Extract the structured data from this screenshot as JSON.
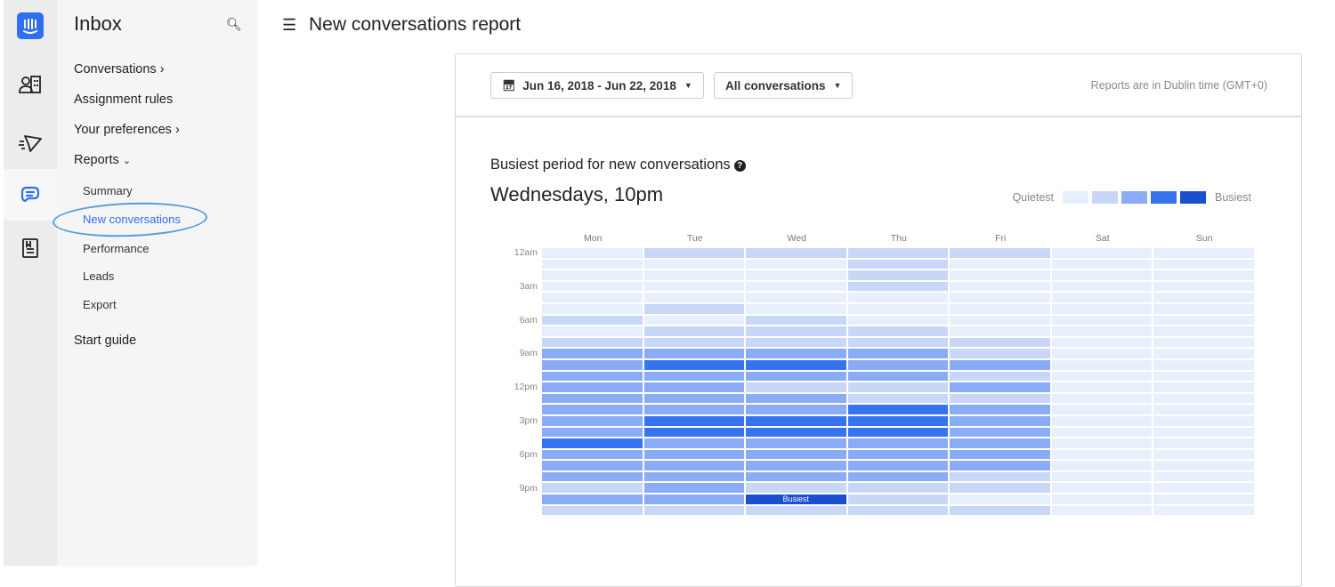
{
  "rail": {
    "icons": [
      "intercom-logo",
      "contacts-icon",
      "outbound-icon",
      "inbox-chat-icon",
      "articles-icon"
    ]
  },
  "sidebar": {
    "title": "Inbox",
    "items": [
      {
        "label": "Conversations",
        "chevron": "›"
      },
      {
        "label": "Assignment rules"
      },
      {
        "label": "Your preferences",
        "chevron": "›"
      },
      {
        "label": "Reports",
        "chevron": "⌄"
      }
    ],
    "sub_items": [
      "Summary",
      "New conversations",
      "Performance",
      "Leads",
      "Export"
    ],
    "selected": "New conversations",
    "start_guide": "Start guide"
  },
  "header": {
    "title": "New conversations report"
  },
  "filters": {
    "date_range": "Jun 16, 2018 - Jun 22, 2018",
    "conversation_filter": "All conversations",
    "timezone_note": "Reports are in Dublin time (GMT+0)"
  },
  "report": {
    "section_title": "Busiest period for new conversations",
    "busiest_period": "Wednesdays, 10pm",
    "legend_low": "Quietest",
    "legend_high": "Busiest"
  },
  "colors": {
    "accent": "#2f6ff0",
    "levels": [
      "#e8effc",
      "#c8d6f7",
      "#8aabf5",
      "#3673ef",
      "#1a4fcf"
    ]
  },
  "chart_data": {
    "type": "heatmap",
    "x_categories": [
      "Mon",
      "Tue",
      "Wed",
      "Thu",
      "Fri",
      "Sat",
      "Sun"
    ],
    "y_tick_labels": [
      "12am",
      "3am",
      "6am",
      "9am",
      "12pm",
      "3pm",
      "6pm",
      "9pm"
    ],
    "hours": [
      "12am",
      "1am",
      "2am",
      "3am",
      "4am",
      "5am",
      "6am",
      "7am",
      "8am",
      "9am",
      "10am",
      "11am",
      "12pm",
      "1pm",
      "2pm",
      "3pm",
      "4pm",
      "5pm",
      "6pm",
      "7pm",
      "8pm",
      "9pm",
      "10pm",
      "11pm"
    ],
    "scale": "level 0 (quietest) to 4 (busiest)",
    "values": [
      [
        0,
        1,
        1,
        1,
        1,
        0,
        0
      ],
      [
        0,
        0,
        0,
        1,
        0,
        0,
        0
      ],
      [
        0,
        0,
        0,
        1,
        0,
        0,
        0
      ],
      [
        0,
        0,
        0,
        1,
        0,
        0,
        0
      ],
      [
        0,
        0,
        0,
        0,
        0,
        0,
        0
      ],
      [
        0,
        1,
        0,
        0,
        0,
        0,
        0
      ],
      [
        1,
        0,
        1,
        0,
        0,
        0,
        0
      ],
      [
        0,
        1,
        1,
        1,
        0,
        0,
        0
      ],
      [
        1,
        1,
        1,
        1,
        1,
        0,
        0
      ],
      [
        2,
        2,
        2,
        2,
        1,
        0,
        0
      ],
      [
        2,
        3,
        3,
        2,
        2,
        0,
        0
      ],
      [
        2,
        2,
        2,
        2,
        1,
        0,
        0
      ],
      [
        2,
        2,
        1,
        1,
        2,
        0,
        0
      ],
      [
        2,
        2,
        2,
        1,
        1,
        0,
        0
      ],
      [
        2,
        2,
        2,
        3,
        2,
        0,
        0
      ],
      [
        2,
        3,
        3,
        3,
        2,
        0,
        0
      ],
      [
        2,
        3,
        3,
        3,
        2,
        0,
        0
      ],
      [
        3,
        2,
        2,
        2,
        2,
        0,
        0
      ],
      [
        2,
        2,
        2,
        2,
        2,
        0,
        0
      ],
      [
        2,
        2,
        2,
        2,
        2,
        0,
        0
      ],
      [
        2,
        2,
        2,
        2,
        1,
        0,
        0
      ],
      [
        1,
        2,
        1,
        1,
        1,
        0,
        0
      ],
      [
        2,
        2,
        4,
        1,
        0,
        0,
        0
      ],
      [
        1,
        1,
        1,
        1,
        1,
        0,
        0
      ]
    ],
    "annotation": {
      "day": "Wed",
      "hour": "10pm",
      "label": "Busiest"
    }
  }
}
